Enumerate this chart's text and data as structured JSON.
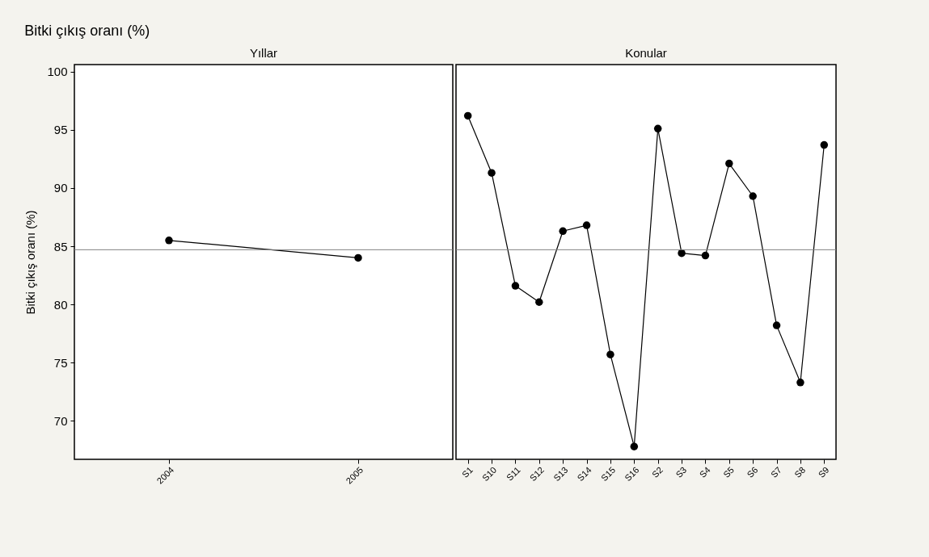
{
  "chart_data": [
    {
      "type": "line",
      "title": "Bitki çıkış oranı (%)",
      "subtitle": "Yıllar",
      "ylabel": "Bitki çıkış oranı (%)",
      "categories": [
        "2004",
        "2005"
      ],
      "values": [
        85.5,
        84.0
      ],
      "color": "#000000",
      "marker": "circle",
      "ylim": [
        66.7,
        100.6
      ],
      "yticks": [
        70,
        75,
        80,
        85,
        90,
        95,
        100
      ],
      "ref_lines": [
        {
          "axis": "y",
          "value": 84.7,
          "color": "#808080"
        }
      ]
    },
    {
      "type": "line",
      "subtitle": "Konular",
      "categories": [
        "S1",
        "S10",
        "S11",
        "S12",
        "S13",
        "S14",
        "S15",
        "S16",
        "S2",
        "S3",
        "S4",
        "S5",
        "S6",
        "S7",
        "S8",
        "S9"
      ],
      "values": [
        96.2,
        91.3,
        81.6,
        80.2,
        86.3,
        86.8,
        75.7,
        67.8,
        95.1,
        84.4,
        84.2,
        92.1,
        89.3,
        78.2,
        73.3,
        93.7
      ],
      "color": "#000000",
      "marker": "circle",
      "ylim": [
        66.7,
        100.6
      ],
      "yticks": [
        70,
        75,
        80,
        85,
        90,
        95,
        100
      ],
      "tick_labels": "x",
      "ref_lines": [
        {
          "axis": "y",
          "value": 84.7,
          "color": "#808080"
        }
      ]
    }
  ]
}
